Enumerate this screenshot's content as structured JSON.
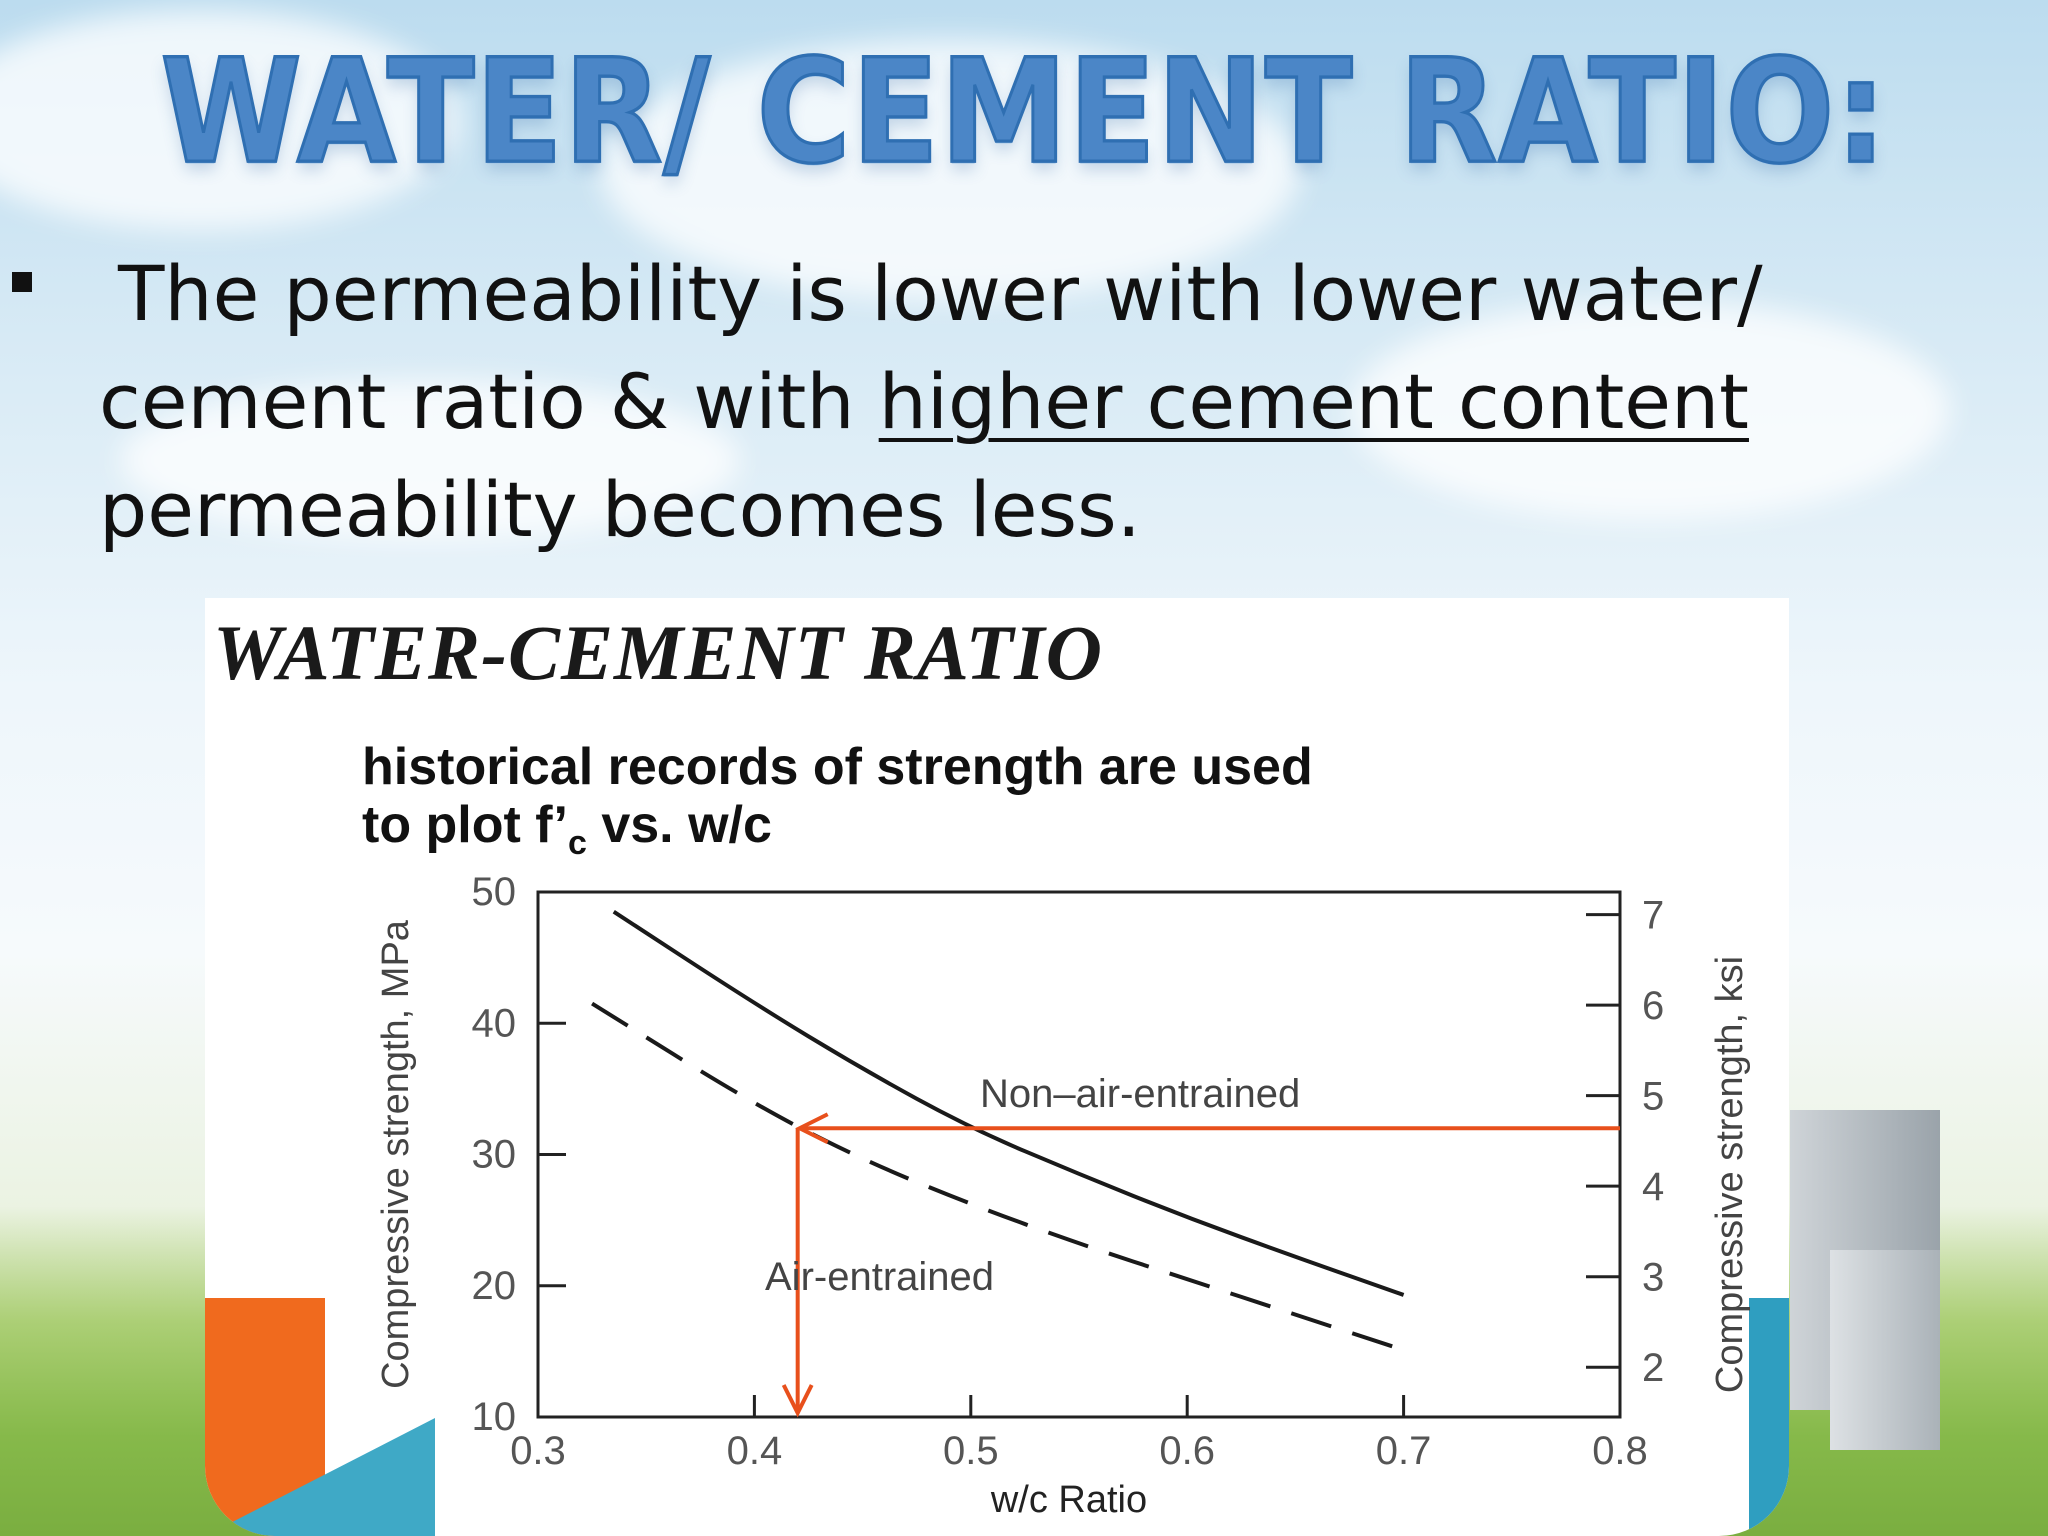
{
  "slide": {
    "title": "WATER/ CEMENT RATIO:",
    "bullet": {
      "line1": "The permeability is lower with lower water/",
      "line2_pre": "cement ratio & with ",
      "line2_underlined": "higher cement content",
      "line3": "permeability becomes less."
    }
  },
  "figure": {
    "heading": "WATER-CEMENT RATIO",
    "subtitle_line1": "historical records of strength are used",
    "subtitle_line2_pre": "to plot f’",
    "subtitle_line2_sub": "c",
    "subtitle_line2_post": " vs. w/c"
  },
  "chart_data": {
    "type": "line",
    "xlabel": "w/c Ratio",
    "ylabel": "Compressive strength, MPa",
    "y2label": "Compressive strength, ksi",
    "xlim": [
      0.3,
      0.8
    ],
    "ylim": [
      10,
      50
    ],
    "y2lim": [
      1.45,
      7.25
    ],
    "xticks": [
      "0.3",
      "0.4",
      "0.5",
      "0.6",
      "0.7",
      "0.8"
    ],
    "yticks": [
      "10",
      "20",
      "30",
      "40",
      "50"
    ],
    "y2ticks": [
      "2",
      "3",
      "4",
      "5",
      "6",
      "7"
    ],
    "series": [
      {
        "name": "Non–air-entrained",
        "style": "solid",
        "x": [
          0.335,
          0.4,
          0.45,
          0.5,
          0.55,
          0.6,
          0.65,
          0.7
        ],
        "y": [
          48.5,
          41.5,
          36.5,
          32.0,
          28.5,
          25.2,
          22.2,
          19.3
        ]
      },
      {
        "name": "Air-entrained",
        "style": "dashed",
        "x": [
          0.325,
          0.4,
          0.45,
          0.5,
          0.55,
          0.6,
          0.65,
          0.7
        ],
        "y": [
          41.5,
          33.8,
          29.6,
          26.2,
          23.2,
          20.5,
          17.8,
          15.1
        ]
      }
    ],
    "annotation": {
      "color": "#e8501c",
      "horizontal_y": 32.0,
      "from_x": 0.8,
      "to_x": 0.42,
      "vertical_x": 0.42,
      "to_y": 10
    },
    "grid": false
  }
}
